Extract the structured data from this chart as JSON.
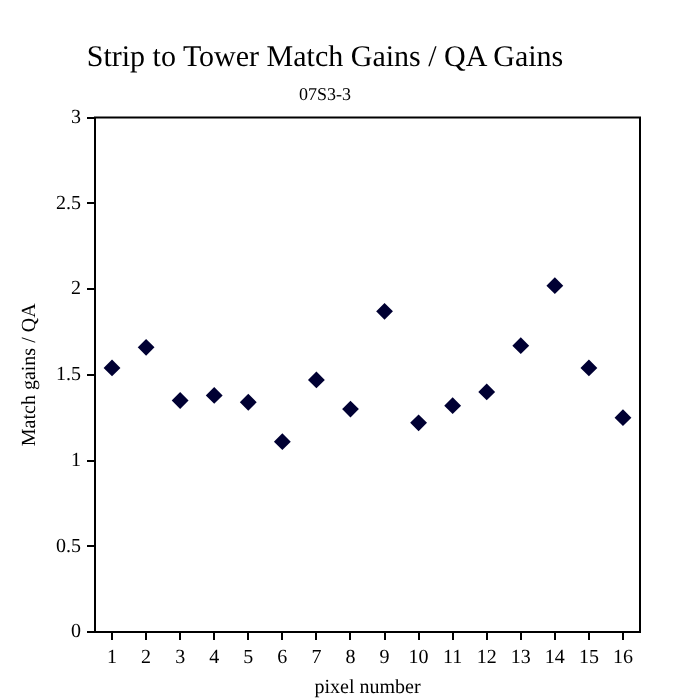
{
  "chart_data": {
    "type": "scatter",
    "title": "Strip to Tower Match Gains / QA Gains",
    "subtitle": "07S3-3",
    "xlabel": "pixel number",
    "ylabel": "Match gains / QA",
    "x": [
      1,
      2,
      3,
      4,
      5,
      6,
      7,
      8,
      9,
      10,
      11,
      12,
      13,
      14,
      15,
      16
    ],
    "values": [
      1.54,
      1.66,
      1.35,
      1.38,
      1.34,
      1.11,
      1.47,
      1.3,
      1.87,
      1.22,
      1.32,
      1.4,
      1.67,
      2.02,
      1.54,
      1.25
    ],
    "color": "#000033",
    "marker": "diamond",
    "xlim": [
      0.5,
      16.5
    ],
    "xticks": [
      1,
      2,
      3,
      4,
      5,
      6,
      7,
      8,
      9,
      10,
      11,
      12,
      13,
      14,
      15,
      16
    ],
    "ylim": [
      0,
      3
    ],
    "yticks": [
      0,
      0.5,
      1,
      1.5,
      2,
      2.5,
      3
    ],
    "grid": false,
    "legend": false
  }
}
